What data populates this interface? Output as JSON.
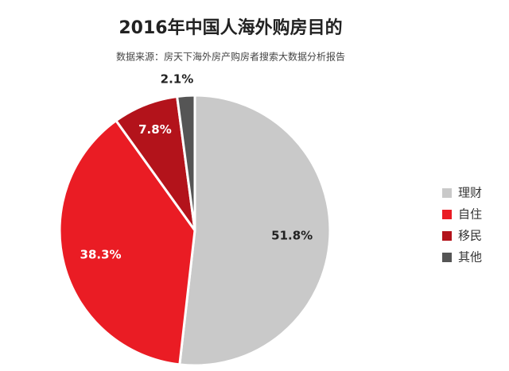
{
  "chart_data": {
    "type": "pie",
    "title": "2016年中国人海外购房目的",
    "subtitle": "数据来源：房天下海外房产购房者搜索大数据分析报告",
    "categories": [
      "理财",
      "自住",
      "移民",
      "其他"
    ],
    "values": [
      51.8,
      38.3,
      7.8,
      2.1
    ],
    "value_labels": [
      "51.8%",
      "38.3%",
      "7.8%",
      "2.1%"
    ],
    "colors": [
      "#c9c9c9",
      "#ea1c24",
      "#b3131b",
      "#555555"
    ]
  }
}
